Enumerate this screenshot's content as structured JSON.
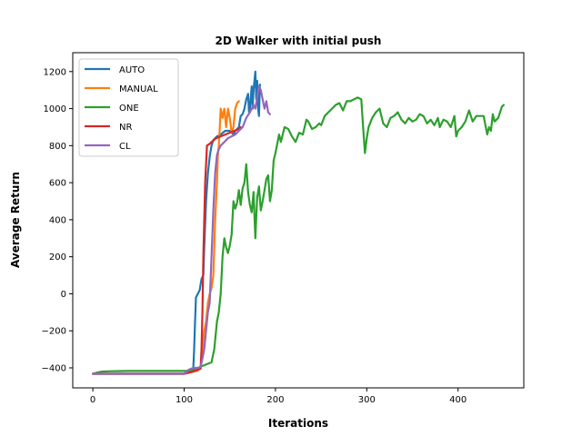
{
  "chart_data": {
    "type": "line",
    "title": "2D Walker with initial push",
    "xlabel": "Iterations",
    "ylabel": "Average Return",
    "xlim": [
      -22,
      472
    ],
    "ylim": [
      -508,
      1302
    ],
    "xticks": [
      0,
      100,
      200,
      300,
      400
    ],
    "yticks": [
      -400,
      -200,
      0,
      200,
      400,
      600,
      800,
      1000,
      1200
    ],
    "grid": false,
    "legend_position": "top-left",
    "series": [
      {
        "name": "AUTO",
        "color": "#1f77b4",
        "points": [
          [
            0,
            -432
          ],
          [
            20,
            -432
          ],
          [
            40,
            -432
          ],
          [
            60,
            -432
          ],
          [
            80,
            -432
          ],
          [
            100,
            -432
          ],
          [
            104,
            -420
          ],
          [
            106,
            -418
          ],
          [
            108,
            -415
          ],
          [
            110,
            -408
          ],
          [
            111,
            -300
          ],
          [
            112,
            -150
          ],
          [
            113,
            -20
          ],
          [
            115,
            0
          ],
          [
            117,
            20
          ],
          [
            119,
            80
          ],
          [
            121,
            100
          ],
          [
            122,
            250
          ],
          [
            124,
            500
          ],
          [
            126,
            650
          ],
          [
            128,
            740
          ],
          [
            130,
            800
          ],
          [
            132,
            830
          ],
          [
            134,
            840
          ],
          [
            136,
            850
          ],
          [
            140,
            860
          ],
          [
            145,
            880
          ],
          [
            150,
            880
          ],
          [
            154,
            860
          ],
          [
            156,
            880
          ],
          [
            158,
            890
          ],
          [
            160,
            900
          ],
          [
            162,
            960
          ],
          [
            164,
            970
          ],
          [
            166,
            1000
          ],
          [
            168,
            1050
          ],
          [
            170,
            1080
          ],
          [
            171,
            980
          ],
          [
            172,
            1000
          ],
          [
            174,
            1120
          ],
          [
            175,
            1000
          ],
          [
            176,
            1100
          ],
          [
            178,
            1200
          ],
          [
            179,
            1050
          ],
          [
            180,
            1150
          ],
          [
            181,
            1000
          ],
          [
            182,
            960
          ],
          [
            183,
            1130
          ]
        ]
      },
      {
        "name": "MANUAL",
        "color": "#ff7f0e",
        "points": [
          [
            0,
            -432
          ],
          [
            20,
            -432
          ],
          [
            40,
            -432
          ],
          [
            60,
            -432
          ],
          [
            80,
            -432
          ],
          [
            100,
            -432
          ],
          [
            110,
            -420
          ],
          [
            115,
            -415
          ],
          [
            118,
            -400
          ],
          [
            120,
            -300
          ],
          [
            122,
            -200
          ],
          [
            124,
            -150
          ],
          [
            126,
            -50
          ],
          [
            128,
            0
          ],
          [
            130,
            30
          ],
          [
            132,
            100
          ],
          [
            134,
            400
          ],
          [
            136,
            600
          ],
          [
            137,
            750
          ],
          [
            138,
            800
          ],
          [
            139,
            900
          ],
          [
            140,
            1000
          ],
          [
            142,
            950
          ],
          [
            144,
            1000
          ],
          [
            146,
            900
          ],
          [
            148,
            1000
          ],
          [
            150,
            950
          ],
          [
            152,
            870
          ],
          [
            154,
            900
          ],
          [
            156,
            1000
          ],
          [
            158,
            1030
          ],
          [
            160,
            1040
          ]
        ]
      },
      {
        "name": "ONE",
        "color": "#2ca02c",
        "points": [
          [
            0,
            -432
          ],
          [
            5,
            -425
          ],
          [
            10,
            -420
          ],
          [
            20,
            -418
          ],
          [
            40,
            -417
          ],
          [
            60,
            -417
          ],
          [
            80,
            -417
          ],
          [
            100,
            -417
          ],
          [
            110,
            -415
          ],
          [
            115,
            -400
          ],
          [
            120,
            -390
          ],
          [
            125,
            -380
          ],
          [
            130,
            -370
          ],
          [
            133,
            -300
          ],
          [
            136,
            -150
          ],
          [
            138,
            -100
          ],
          [
            140,
            0
          ],
          [
            142,
            200
          ],
          [
            144,
            300
          ],
          [
            146,
            250
          ],
          [
            148,
            220
          ],
          [
            150,
            260
          ],
          [
            152,
            320
          ],
          [
            154,
            500
          ],
          [
            156,
            460
          ],
          [
            158,
            490
          ],
          [
            160,
            560
          ],
          [
            162,
            480
          ],
          [
            164,
            570
          ],
          [
            166,
            600
          ],
          [
            168,
            700
          ],
          [
            170,
            550
          ],
          [
            172,
            480
          ],
          [
            174,
            440
          ],
          [
            176,
            550
          ],
          [
            178,
            300
          ],
          [
            180,
            520
          ],
          [
            182,
            580
          ],
          [
            184,
            450
          ],
          [
            186,
            500
          ],
          [
            188,
            560
          ],
          [
            190,
            620
          ],
          [
            192,
            640
          ],
          [
            194,
            500
          ],
          [
            196,
            560
          ],
          [
            198,
            720
          ],
          [
            200,
            760
          ],
          [
            204,
            860
          ],
          [
            206,
            820
          ],
          [
            210,
            900
          ],
          [
            214,
            890
          ],
          [
            218,
            850
          ],
          [
            222,
            820
          ],
          [
            226,
            870
          ],
          [
            230,
            860
          ],
          [
            234,
            940
          ],
          [
            236,
            930
          ],
          [
            240,
            890
          ],
          [
            244,
            900
          ],
          [
            248,
            920
          ],
          [
            250,
            910
          ],
          [
            254,
            960
          ],
          [
            258,
            980
          ],
          [
            262,
            1000
          ],
          [
            266,
            1020
          ],
          [
            270,
            1030
          ],
          [
            274,
            990
          ],
          [
            278,
            1040
          ],
          [
            282,
            1040
          ],
          [
            286,
            1050
          ],
          [
            290,
            1060
          ],
          [
            294,
            1050
          ],
          [
            296,
            900
          ],
          [
            298,
            760
          ],
          [
            300,
            840
          ],
          [
            302,
            900
          ],
          [
            306,
            950
          ],
          [
            310,
            980
          ],
          [
            314,
            1000
          ],
          [
            318,
            920
          ],
          [
            322,
            900
          ],
          [
            326,
            950
          ],
          [
            330,
            960
          ],
          [
            334,
            980
          ],
          [
            338,
            940
          ],
          [
            342,
            920
          ],
          [
            346,
            950
          ],
          [
            350,
            930
          ],
          [
            354,
            940
          ],
          [
            358,
            970
          ],
          [
            362,
            960
          ],
          [
            366,
            920
          ],
          [
            370,
            940
          ],
          [
            374,
            910
          ],
          [
            378,
            950
          ],
          [
            380,
            900
          ],
          [
            384,
            940
          ],
          [
            388,
            930
          ],
          [
            392,
            900
          ],
          [
            396,
            960
          ],
          [
            398,
            850
          ],
          [
            400,
            880
          ],
          [
            404,
            900
          ],
          [
            408,
            930
          ],
          [
            412,
            990
          ],
          [
            416,
            930
          ],
          [
            420,
            960
          ],
          [
            424,
            960
          ],
          [
            428,
            960
          ],
          [
            432,
            860
          ],
          [
            434,
            900
          ],
          [
            436,
            880
          ],
          [
            438,
            970
          ],
          [
            440,
            930
          ],
          [
            444,
            950
          ],
          [
            448,
            1010
          ],
          [
            450,
            1020
          ]
        ]
      },
      {
        "name": "NR",
        "color": "#d62728",
        "points": [
          [
            0,
            -432
          ],
          [
            20,
            -432
          ],
          [
            40,
            -432
          ],
          [
            60,
            -432
          ],
          [
            80,
            -432
          ],
          [
            100,
            -432
          ],
          [
            110,
            -420
          ],
          [
            115,
            -410
          ],
          [
            118,
            -405
          ],
          [
            119,
            -300
          ],
          [
            120,
            -100
          ],
          [
            121,
            200
          ],
          [
            122,
            400
          ],
          [
            123,
            600
          ],
          [
            124,
            700
          ],
          [
            125,
            800
          ],
          [
            128,
            810
          ],
          [
            130,
            820
          ],
          [
            135,
            840
          ],
          [
            140,
            850
          ],
          [
            145,
            860
          ],
          [
            150,
            870
          ],
          [
            155,
            880
          ],
          [
            160,
            890
          ],
          [
            162,
            900
          ]
        ]
      },
      {
        "name": "CL",
        "color": "#9467bd",
        "points": [
          [
            0,
            -432
          ],
          [
            20,
            -432
          ],
          [
            40,
            -432
          ],
          [
            60,
            -432
          ],
          [
            80,
            -432
          ],
          [
            100,
            -432
          ],
          [
            105,
            -410
          ],
          [
            110,
            -400
          ],
          [
            115,
            -400
          ],
          [
            118,
            -395
          ],
          [
            120,
            -350
          ],
          [
            122,
            -300
          ],
          [
            124,
            -200
          ],
          [
            126,
            -100
          ],
          [
            128,
            -50
          ],
          [
            130,
            200
          ],
          [
            132,
            450
          ],
          [
            134,
            650
          ],
          [
            136,
            750
          ],
          [
            138,
            780
          ],
          [
            140,
            800
          ],
          [
            144,
            820
          ],
          [
            148,
            840
          ],
          [
            152,
            850
          ],
          [
            156,
            860
          ],
          [
            160,
            880
          ],
          [
            164,
            900
          ],
          [
            168,
            950
          ],
          [
            172,
            980
          ],
          [
            174,
            1000
          ],
          [
            176,
            1020
          ],
          [
            178,
            1000
          ],
          [
            180,
            1060
          ],
          [
            182,
            1120
          ],
          [
            184,
            1100
          ],
          [
            186,
            1050
          ],
          [
            188,
            1000
          ],
          [
            190,
            1040
          ],
          [
            192,
            980
          ],
          [
            194,
            970
          ]
        ]
      }
    ]
  }
}
